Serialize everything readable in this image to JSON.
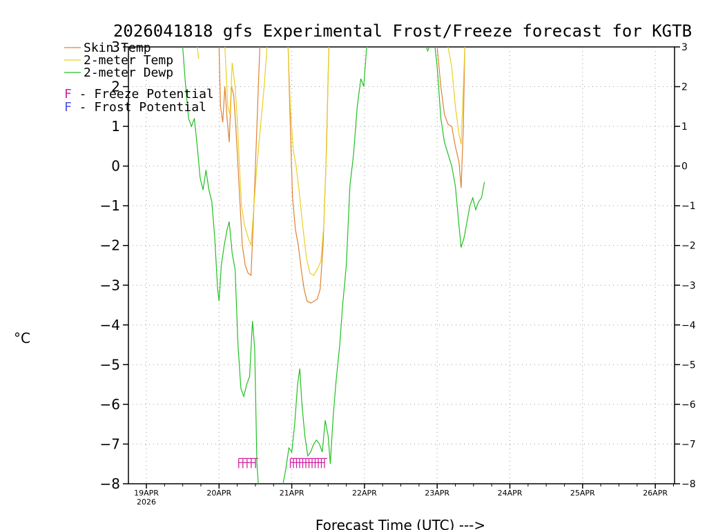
{
  "chart_data": {
    "type": "line",
    "title": "2026041818 gfs Experimental Frost/Freeze forecast for KGTB",
    "xlabel": "Forecast Time (UTC) --->",
    "ylabel": "°C",
    "ylim": [
      -8,
      3
    ],
    "xlim_days": [
      0,
      7.35
    ],
    "y_ticks": [
      3,
      2,
      1,
      0,
      -1,
      -2,
      -3,
      -4,
      -5,
      -6,
      -7,
      -8
    ],
    "y_tick_labels": [
      "3",
      "2",
      "1",
      "0",
      "−1",
      "−2",
      "−3",
      "−4",
      "−5",
      "−6",
      "−7",
      "−8"
    ],
    "x_ticks": [
      {
        "day": 0,
        "label": "19APR",
        "sublabel": "2026"
      },
      {
        "day": 1,
        "label": "20APR",
        "sublabel": ""
      },
      {
        "day": 2,
        "label": "21APR",
        "sublabel": ""
      },
      {
        "day": 3,
        "label": "22APR",
        "sublabel": ""
      },
      {
        "day": 4,
        "label": "23APR",
        "sublabel": ""
      },
      {
        "day": 5,
        "label": "24APR",
        "sublabel": ""
      },
      {
        "day": 6,
        "label": "25APR",
        "sublabel": ""
      },
      {
        "day": 7,
        "label": "26APR",
        "sublabel": ""
      }
    ],
    "series": [
      {
        "name": "Skin Temp",
        "color": "#e08030",
        "segments": [
          [
            [
              1.0,
              3
            ],
            [
              1.02,
              1.5
            ],
            [
              1.05,
              1.1
            ],
            [
              1.08,
              2.0
            ],
            [
              1.11,
              1.2
            ],
            [
              1.14,
              0.6
            ],
            [
              1.17,
              2.0
            ],
            [
              1.2,
              1.8
            ],
            [
              1.23,
              1.0
            ],
            [
              1.26,
              0.0
            ],
            [
              1.29,
              -1.0
            ],
            [
              1.32,
              -2.0
            ],
            [
              1.36,
              -2.5
            ],
            [
              1.4,
              -2.7
            ],
            [
              1.44,
              -2.75
            ],
            [
              1.48,
              -1.0
            ],
            [
              1.52,
              1.0
            ],
            [
              1.56,
              3
            ]
          ],
          [
            [
              1.95,
              3
            ],
            [
              1.98,
              1.0
            ],
            [
              2.01,
              -0.8
            ],
            [
              2.05,
              -1.6
            ],
            [
              2.09,
              -2.0
            ],
            [
              2.13,
              -2.6
            ],
            [
              2.17,
              -3.1
            ],
            [
              2.21,
              -3.4
            ],
            [
              2.26,
              -3.45
            ],
            [
              2.31,
              -3.4
            ],
            [
              2.35,
              -3.35
            ],
            [
              2.39,
              -3.1
            ],
            [
              2.43,
              -2.0
            ],
            [
              2.47,
              0.0
            ],
            [
              2.51,
              3
            ]
          ],
          [
            [
              4.0,
              3
            ],
            [
              4.05,
              2.0
            ],
            [
              4.1,
              1.3
            ],
            [
              4.15,
              1.05
            ],
            [
              4.2,
              1.0
            ],
            [
              4.25,
              0.5
            ],
            [
              4.3,
              0.1
            ],
            [
              4.33,
              -0.55
            ],
            [
              4.36,
              1.0
            ],
            [
              4.38,
              3
            ]
          ]
        ]
      },
      {
        "name": "2-meter Temp",
        "color": "#e8d020",
        "segments": [
          [
            [
              0.7,
              3
            ],
            [
              0.72,
              2.7
            ]
          ],
          [
            [
              1.08,
              3
            ],
            [
              1.12,
              1.5
            ],
            [
              1.15,
              1.3
            ],
            [
              1.18,
              2.6
            ],
            [
              1.22,
              2.0
            ],
            [
              1.25,
              1.2
            ],
            [
              1.28,
              0.0
            ],
            [
              1.31,
              -1.0
            ],
            [
              1.35,
              -1.5
            ],
            [
              1.4,
              -1.8
            ],
            [
              1.44,
              -2.0
            ],
            [
              1.48,
              -1.0
            ],
            [
              1.52,
              0.0
            ],
            [
              1.57,
              1.0
            ],
            [
              1.62,
              2.0
            ],
            [
              1.66,
              3
            ]
          ],
          [
            [
              1.95,
              3
            ],
            [
              1.98,
              1.5
            ],
            [
              2.02,
              0.4
            ],
            [
              2.06,
              0.0
            ],
            [
              2.1,
              -0.6
            ],
            [
              2.15,
              -1.5
            ],
            [
              2.2,
              -2.3
            ],
            [
              2.25,
              -2.7
            ],
            [
              2.3,
              -2.75
            ],
            [
              2.35,
              -2.6
            ],
            [
              2.4,
              -2.4
            ],
            [
              2.44,
              -1.5
            ],
            [
              2.48,
              0.5
            ],
            [
              2.51,
              3
            ]
          ],
          [
            [
              4.15,
              3
            ],
            [
              4.2,
              2.5
            ],
            [
              4.25,
              1.5
            ],
            [
              4.3,
              0.8
            ],
            [
              4.33,
              0.55
            ],
            [
              4.36,
              2.0
            ],
            [
              4.38,
              3
            ]
          ]
        ]
      },
      {
        "name": "2-meter Dewp",
        "color": "#20c020",
        "segments": [
          [
            [
              0.5,
              3
            ],
            [
              0.54,
              2.0
            ],
            [
              0.58,
              1.2
            ],
            [
              0.62,
              1.0
            ],
            [
              0.66,
              1.2
            ],
            [
              0.7,
              0.5
            ],
            [
              0.74,
              -0.3
            ],
            [
              0.78,
              -0.6
            ],
            [
              0.82,
              -0.1
            ],
            [
              0.86,
              -0.6
            ],
            [
              0.9,
              -0.9
            ],
            [
              0.94,
              -1.8
            ],
            [
              0.98,
              -3.1
            ],
            [
              1.0,
              -3.4
            ],
            [
              1.03,
              -2.5
            ],
            [
              1.07,
              -2.0
            ],
            [
              1.11,
              -1.6
            ],
            [
              1.14,
              -1.4
            ],
            [
              1.18,
              -2.2
            ],
            [
              1.22,
              -2.6
            ],
            [
              1.26,
              -4.5
            ],
            [
              1.3,
              -5.6
            ],
            [
              1.34,
              -5.8
            ],
            [
              1.38,
              -5.5
            ],
            [
              1.42,
              -5.3
            ],
            [
              1.46,
              -3.9
            ],
            [
              1.49,
              -4.6
            ],
            [
              1.52,
              -7.5
            ],
            [
              1.54,
              -8
            ]
          ],
          [
            [
              1.88,
              -8
            ],
            [
              1.92,
              -7.6
            ],
            [
              1.96,
              -7.1
            ],
            [
              2.0,
              -7.2
            ],
            [
              2.04,
              -6.5
            ],
            [
              2.08,
              -5.5
            ],
            [
              2.11,
              -5.1
            ],
            [
              2.14,
              -6.0
            ],
            [
              2.18,
              -6.8
            ],
            [
              2.22,
              -7.3
            ],
            [
              2.26,
              -7.2
            ],
            [
              2.3,
              -7.0
            ],
            [
              2.34,
              -6.9
            ],
            [
              2.38,
              -7.0
            ],
            [
              2.42,
              -7.2
            ],
            [
              2.46,
              -6.4
            ],
            [
              2.5,
              -6.8
            ],
            [
              2.53,
              -7.5
            ],
            [
              2.57,
              -6.3
            ],
            [
              2.61,
              -5.4
            ],
            [
              2.66,
              -4.5
            ],
            [
              2.7,
              -3.5
            ],
            [
              2.75,
              -2.5
            ],
            [
              2.8,
              -0.5
            ],
            [
              2.85,
              0.3
            ],
            [
              2.9,
              1.5
            ],
            [
              2.95,
              2.2
            ],
            [
              2.99,
              2.0
            ],
            [
              3.03,
              3.0
            ],
            [
              3.05,
              3
            ]
          ],
          [
            [
              3.85,
              3
            ],
            [
              3.87,
              2.9
            ],
            [
              3.89,
              3
            ]
          ],
          [
            [
              3.97,
              3
            ],
            [
              4.0,
              2.5
            ],
            [
              4.05,
              1.2
            ],
            [
              4.1,
              0.6
            ],
            [
              4.15,
              0.3
            ],
            [
              4.2,
              0.0
            ],
            [
              4.25,
              -0.5
            ],
            [
              4.3,
              -1.5
            ],
            [
              4.33,
              -2.05
            ],
            [
              4.37,
              -1.8
            ],
            [
              4.41,
              -1.4
            ],
            [
              4.45,
              -1.0
            ],
            [
              4.49,
              -0.8
            ],
            [
              4.53,
              -1.1
            ],
            [
              4.57,
              -0.9
            ],
            [
              4.61,
              -0.8
            ],
            [
              4.65,
              -0.4
            ]
          ]
        ]
      }
    ],
    "markers": [
      {
        "name": "Freeze Potential",
        "symbol": "F",
        "color": "#d020a0",
        "y": -7.45,
        "start_day": 1.27,
        "end_day": 1.5,
        "count": 5
      },
      {
        "name": "Freeze Potential",
        "symbol": "F",
        "color": "#d020a0",
        "y": -7.45,
        "start_day": 1.98,
        "end_day": 2.45,
        "count": 12
      }
    ],
    "legend": {
      "placement": "top-left",
      "lines": [
        {
          "label": "Skin Temp",
          "color": "#e08030"
        },
        {
          "label": "2-meter Temp",
          "color": "#e8d020"
        },
        {
          "label": "2-meter Dewp",
          "color": "#20c020"
        }
      ],
      "symbols": [
        {
          "symbol": "F",
          "label": " - Freeze Potential",
          "color": "#d020a0"
        },
        {
          "symbol": "F",
          "label": " - Frost Potential",
          "color": "#5050e0"
        }
      ]
    },
    "grid": true
  }
}
